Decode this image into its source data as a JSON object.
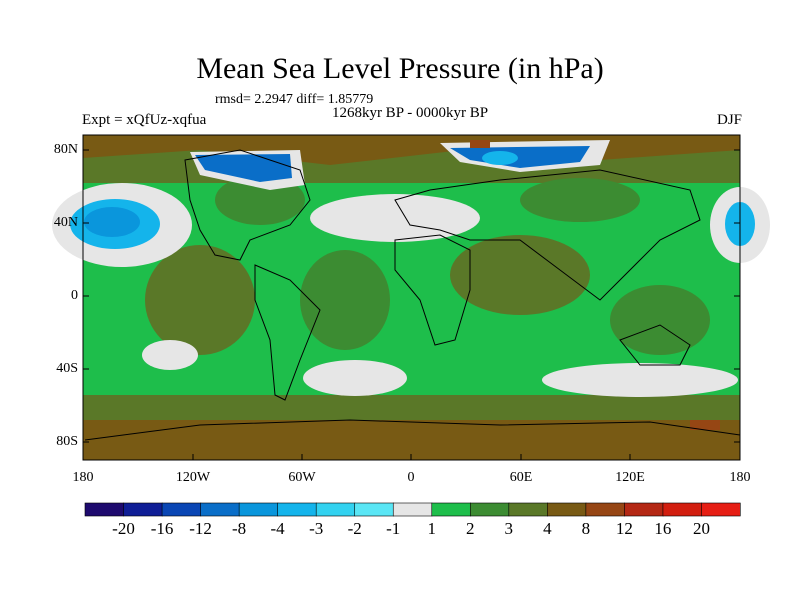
{
  "title": "Mean Sea Level Pressure (in hPa)",
  "stats": "rmsd= 2.2947 diff= 1.85779",
  "period": "1268kyr BP - 0000kyr BP",
  "experiment": "Expt = xQfUz-xqfua",
  "season": "DJF",
  "lat_labels": [
    "80N",
    "40N",
    "0",
    "40S",
    "80S"
  ],
  "lon_labels": [
    "180",
    "120W",
    "60W",
    "0",
    "60E",
    "120E",
    "180"
  ],
  "colorbar": {
    "labels": [
      "-20",
      "-16",
      "-12",
      "-8",
      "-4",
      "-3",
      "-2",
      "-1",
      "1",
      "2",
      "3",
      "4",
      "8",
      "12",
      "16",
      "20"
    ],
    "colors": [
      "#1e0a6e",
      "#0f1e96",
      "#0a46b4",
      "#0a6ec8",
      "#0a96dc",
      "#14b4eb",
      "#32d2f0",
      "#5ae6f5",
      "#e6e6e6",
      "#1ebe4b",
      "#3c8c32",
      "#5a7828",
      "#785a14",
      "#964614",
      "#b42814",
      "#d21e0f",
      "#e61e14"
    ]
  },
  "palette": {
    "map_base": "#1ebe4b",
    "dark_green": "#3c8c32",
    "olive": "#5a7828",
    "brown": "#785a14",
    "white_zone": "#e6e6e6",
    "land_outline": "#000000"
  }
}
